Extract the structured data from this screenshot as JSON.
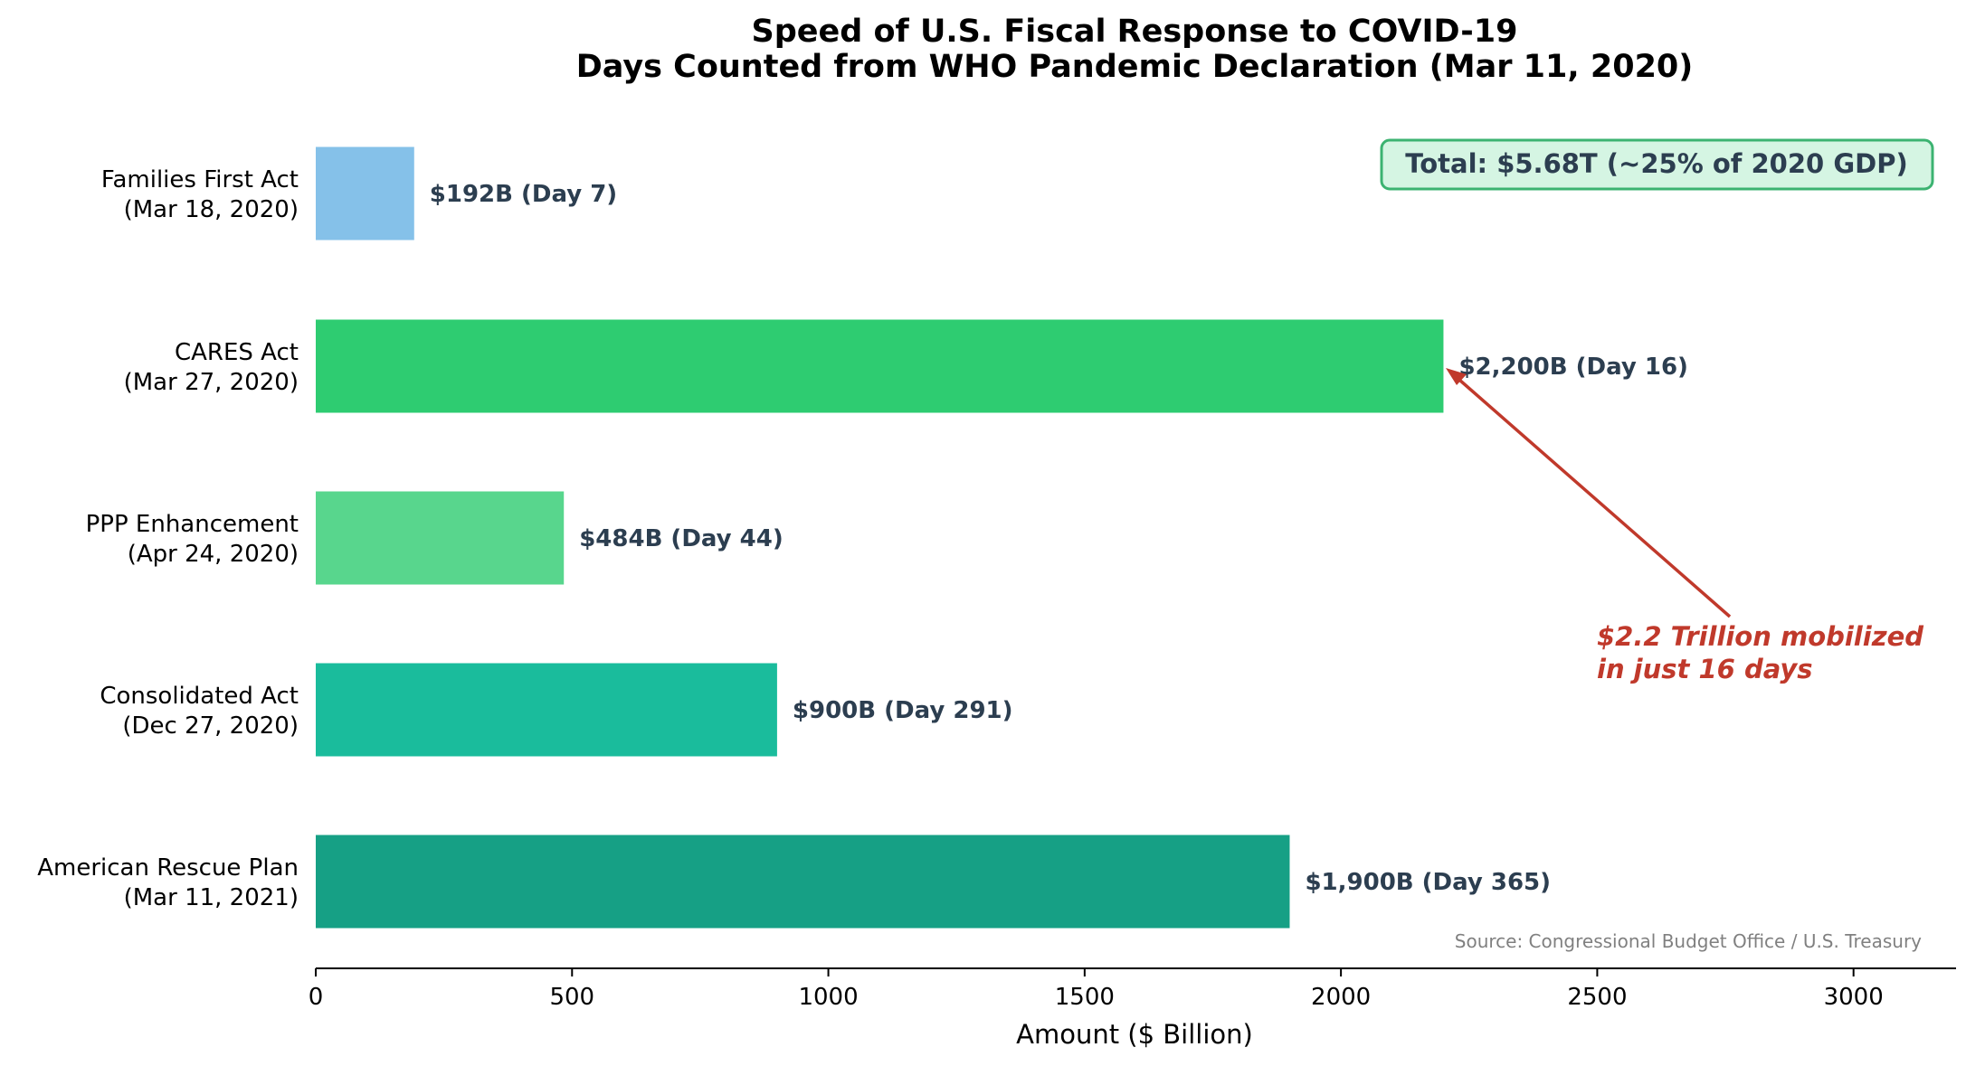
{
  "chart_data": {
    "type": "bar",
    "orientation": "horizontal",
    "title": "Speed of U.S. Fiscal Response to COVID-19",
    "subtitle": "Days Counted from WHO Pandemic Declaration (Mar 11, 2020)",
    "xlabel": "Amount ($ Billion)",
    "ylabel": "",
    "xlim": [
      0,
      3200
    ],
    "xticks": [
      0,
      500,
      1000,
      1500,
      2000,
      2500,
      3000
    ],
    "grid": false,
    "categories": [
      "Families First Act\n(Mar 18, 2020)",
      "CARES Act\n(Mar 27, 2020)",
      "PPP Enhancement\n(Apr 24, 2020)",
      "Consolidated Act\n(Dec 27, 2020)",
      "American Rescue Plan\n(Mar 11, 2021)"
    ],
    "values": [
      192,
      2200,
      484,
      900,
      1900
    ],
    "data_labels": [
      "$192B  (Day 7)",
      "$2,200B  (Day 16)",
      "$484B  (Day 44)",
      "$900B  (Day 291)",
      "$1,900B  (Day 365)"
    ],
    "colors": [
      "#85C1E9",
      "#2ECC71",
      "#58D68D",
      "#1ABC9C",
      "#16A085"
    ],
    "label_color": "#2C3E50",
    "annotations": {
      "total_box": "Total: $5.68T (~25% of 2020 GDP)",
      "arrow_note": "$2.2 Trillion mobilized\nin just 16 days",
      "arrow_color": "#C0392B",
      "source": "Source: Congressional Budget Office / U.S. Treasury"
    }
  }
}
